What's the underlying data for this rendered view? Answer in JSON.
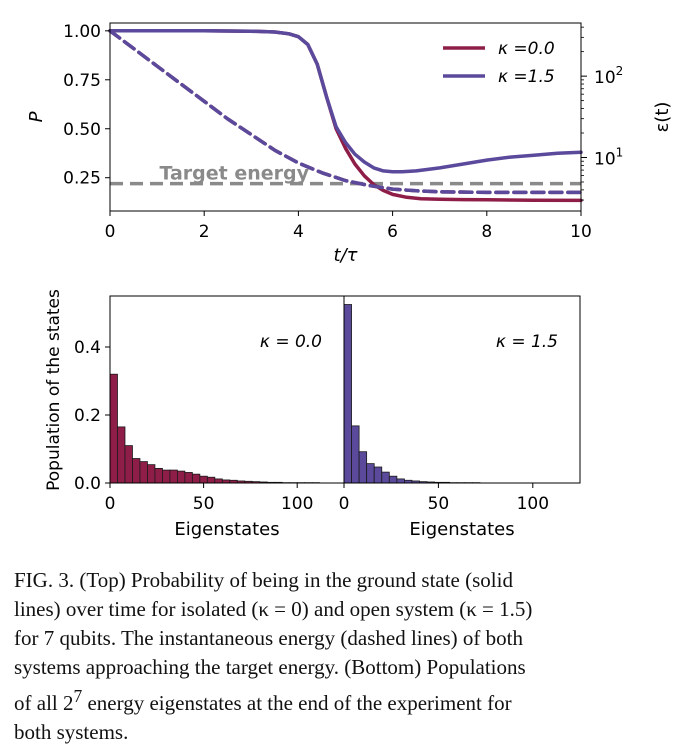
{
  "chart_data": [
    {
      "type": "line",
      "title": "",
      "xlabel": "t/τ",
      "ylabel": "P",
      "ylabel_right": "ε(t)",
      "xlim": [
        0,
        10
      ],
      "ylim": [
        0.08,
        1.04
      ],
      "xticks": [
        0,
        2,
        4,
        6,
        8,
        10
      ],
      "xtick_labels": [
        "0",
        "2",
        "4",
        "6",
        "8",
        "10"
      ],
      "yticks": [
        0.25,
        0.5,
        0.75,
        1.0
      ],
      "ytick_labels": [
        "0.25",
        "0.50",
        "0.75",
        "1.00"
      ],
      "right_axis_scale": "log",
      "right_ylim": [
        2.2,
        450
      ],
      "right_yticks": [
        10,
        100
      ],
      "right_ytick_base": "10",
      "right_ytick_exponents": [
        "1",
        "2"
      ],
      "legend_position": "top-right",
      "target_energy": {
        "label": "Target energy",
        "value": 0.22
      },
      "series": [
        {
          "name": "κ =0.0",
          "color": "#8e1e48",
          "style": "solid",
          "axis": "left",
          "x": [
            0,
            1,
            2,
            3,
            3.5,
            3.8,
            4,
            4.2,
            4.4,
            4.6,
            4.8,
            5.0,
            5.2,
            5.4,
            5.6,
            5.8,
            6.0,
            6.3,
            6.6,
            7,
            7.5,
            8,
            9,
            10
          ],
          "y": [
            1.0,
            1.0,
            1.0,
            0.998,
            0.994,
            0.985,
            0.97,
            0.93,
            0.83,
            0.66,
            0.5,
            0.4,
            0.32,
            0.26,
            0.215,
            0.185,
            0.165,
            0.15,
            0.143,
            0.14,
            0.138,
            0.137,
            0.135,
            0.134
          ]
        },
        {
          "name": "κ =1.5",
          "color": "#5b4a9c",
          "style": "solid",
          "axis": "left",
          "x": [
            0,
            1,
            2,
            3,
            3.5,
            3.8,
            4,
            4.2,
            4.4,
            4.6,
            4.8,
            5.0,
            5.2,
            5.4,
            5.6,
            5.8,
            6.0,
            6.2,
            6.5,
            7,
            7.5,
            8,
            8.5,
            9,
            9.5,
            10
          ],
          "y": [
            1.0,
            1.0,
            1.0,
            0.998,
            0.994,
            0.985,
            0.97,
            0.93,
            0.83,
            0.66,
            0.51,
            0.43,
            0.37,
            0.33,
            0.3,
            0.285,
            0.28,
            0.28,
            0.285,
            0.3,
            0.32,
            0.34,
            0.355,
            0.365,
            0.375,
            0.38
          ]
        },
        {
          "name": "κ =0.0 energy",
          "color": "#8e1e48",
          "style": "dashed",
          "axis": "left",
          "x": [
            0,
            0.5,
            1,
            1.5,
            2,
            2.5,
            3,
            3.5,
            4,
            4.5,
            5,
            5.5,
            6,
            6.5,
            7,
            8,
            9,
            10
          ],
          "y": [
            1.0,
            0.91,
            0.82,
            0.73,
            0.64,
            0.55,
            0.47,
            0.39,
            0.325,
            0.275,
            0.235,
            0.21,
            0.192,
            0.183,
            0.178,
            0.175,
            0.175,
            0.175
          ]
        },
        {
          "name": "κ =1.5 energy",
          "color": "#5b4a9c",
          "style": "dashed",
          "axis": "left",
          "x": [
            0,
            0.5,
            1,
            1.5,
            2,
            2.5,
            3,
            3.5,
            4,
            4.5,
            5,
            5.5,
            6,
            6.5,
            7,
            8,
            9,
            10
          ],
          "y": [
            1.0,
            0.91,
            0.82,
            0.73,
            0.64,
            0.55,
            0.47,
            0.39,
            0.325,
            0.275,
            0.235,
            0.21,
            0.192,
            0.183,
            0.178,
            0.175,
            0.175,
            0.175
          ]
        }
      ]
    },
    {
      "type": "bar",
      "title": "",
      "xlabel": "Eigenstates",
      "ylabel": "Population of the states",
      "annotation": "κ = 0.0",
      "color": "#8e1e48",
      "xlim": [
        0,
        125
      ],
      "ylim": [
        0,
        0.55
      ],
      "xticks": [
        0,
        50,
        100
      ],
      "xtick_labels": [
        "0",
        "50",
        "100"
      ],
      "yticks": [
        0.0,
        0.2,
        0.4
      ],
      "ytick_labels": [
        "0.0",
        "0.2",
        "0.4"
      ],
      "bin_width": 4,
      "bin_starts": [
        0,
        4,
        8,
        12,
        16,
        20,
        24,
        28,
        32,
        36,
        40,
        44,
        48,
        52,
        56,
        60,
        64,
        68,
        72,
        76,
        80,
        84,
        88,
        92,
        96,
        100,
        104,
        108,
        112,
        116,
        120
      ],
      "values": [
        0.32,
        0.165,
        0.11,
        0.072,
        0.063,
        0.054,
        0.043,
        0.038,
        0.038,
        0.035,
        0.031,
        0.026,
        0.02,
        0.017,
        0.012,
        0.009,
        0.008,
        0.006,
        0.005,
        0.004,
        0.003,
        0.002,
        0.002,
        0.001,
        0.001,
        0.001,
        0.001,
        0.001,
        0.0,
        0.0,
        0.0
      ]
    },
    {
      "type": "bar",
      "title": "",
      "xlabel": "Eigenstates",
      "ylabel": "",
      "annotation": "κ = 1.5",
      "color": "#5b4a9c",
      "xlim": [
        0,
        125
      ],
      "ylim": [
        0,
        0.55
      ],
      "xticks": [
        0,
        50,
        100
      ],
      "xtick_labels": [
        "0",
        "50",
        "100"
      ],
      "bin_width": 4,
      "bin_starts": [
        0,
        4,
        8,
        12,
        16,
        20,
        24,
        28,
        32,
        36,
        40,
        44,
        48,
        52,
        56,
        60,
        64,
        68,
        72,
        76,
        80,
        84,
        88,
        92,
        96,
        100,
        104,
        108,
        112,
        116,
        120
      ],
      "values": [
        0.525,
        0.168,
        0.092,
        0.057,
        0.047,
        0.032,
        0.02,
        0.012,
        0.008,
        0.006,
        0.004,
        0.003,
        0.002,
        0.002,
        0.001,
        0.001,
        0.001,
        0.001,
        0.0,
        0.0,
        0.0,
        0.0,
        0.0,
        0.0,
        0.0,
        0.0,
        0.0,
        0.0,
        0.0,
        0.0,
        0.0
      ]
    }
  ],
  "caption": {
    "line1": "FIG. 3.   (Top) Probability of being in the ground state (solid",
    "line2": "lines) over time for isolated (κ = 0) and open system (κ = 1.5)",
    "line3": "for 7 qubits. The instantaneous energy (dashed lines) of both",
    "line4": "systems approaching the target energy. (Bottom) Populations",
    "line5_before": "of all 2",
    "line5_sup": "7",
    "line5_after": " energy eigenstates at the end of the experiment for",
    "line6": "both systems."
  }
}
